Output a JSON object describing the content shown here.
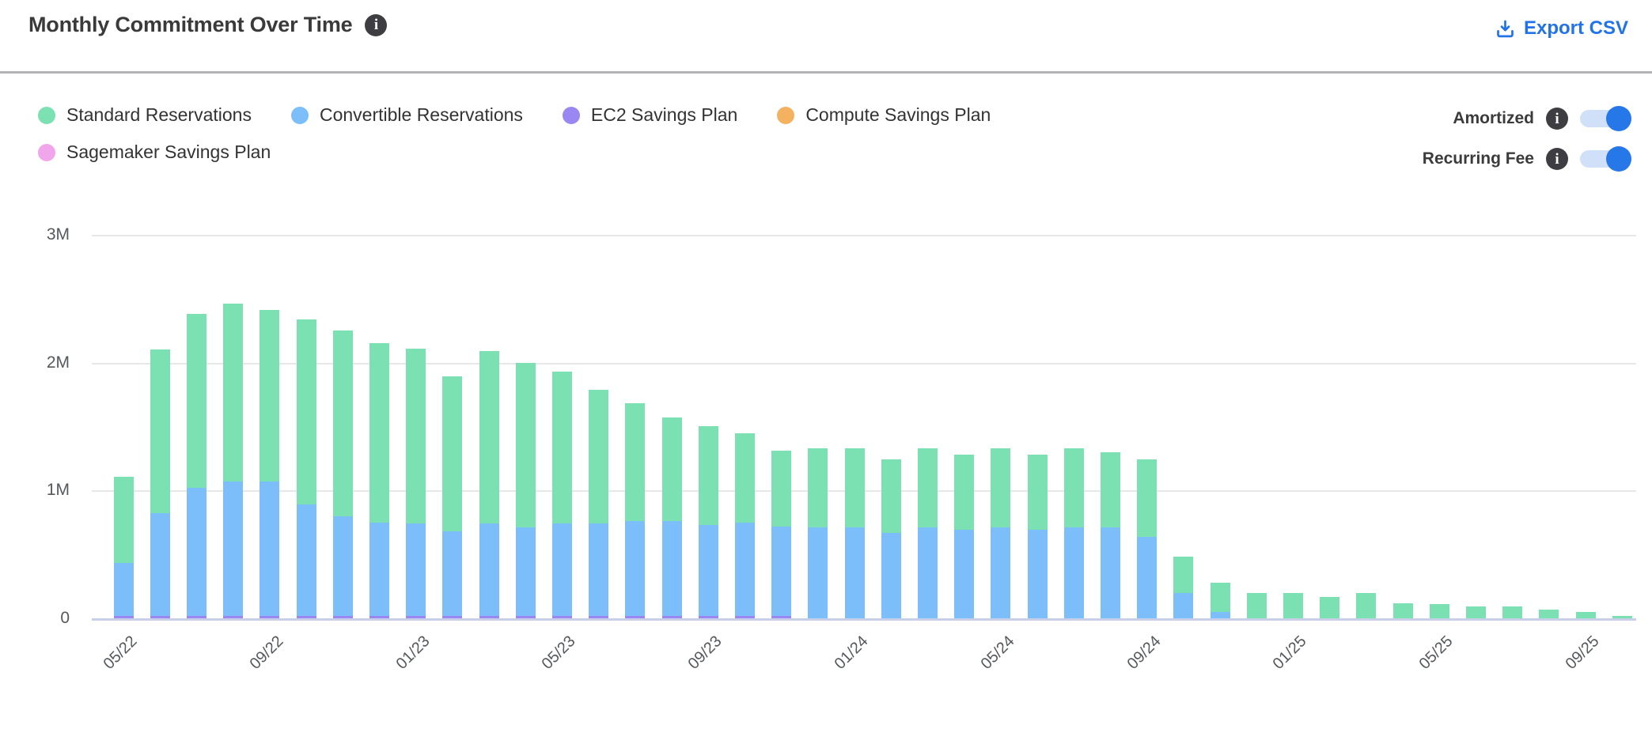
{
  "header": {
    "title": "Monthly Commitment Over Time",
    "export_label": "Export CSV"
  },
  "icons": {
    "info_glyph": "i"
  },
  "toggles": [
    {
      "label": "Amortized",
      "state": "on"
    },
    {
      "label": "Recurring Fee",
      "state": "on"
    }
  ],
  "colors": {
    "accent_blue": "#2272e9",
    "toggle_on": "#2677e8",
    "toggle_track": "#cfe0f8",
    "grid": "#e7e7e8",
    "axis_line": "#c8cfe9",
    "text_dark": "#3a3a3a",
    "text_axis": "#55585d"
  },
  "chart_data": {
    "type": "bar",
    "stacked": true,
    "title": "Monthly Commitment Over Time",
    "unit": "M",
    "grid": "horizontal",
    "legend_position": "top-left",
    "ylim": [
      0,
      3
    ],
    "yticks": [
      "0",
      "1M",
      "2M",
      "3M"
    ],
    "x_tick_every": 4,
    "x": [
      "05/22",
      "06/22",
      "07/22",
      "08/22",
      "09/22",
      "10/22",
      "11/22",
      "12/22",
      "01/23",
      "02/23",
      "03/23",
      "04/23",
      "05/23",
      "06/23",
      "07/23",
      "08/23",
      "09/23",
      "10/23",
      "11/23",
      "12/23",
      "01/24",
      "02/24",
      "03/24",
      "04/24",
      "05/24",
      "06/24",
      "07/24",
      "08/24",
      "09/24",
      "10/24",
      "11/24",
      "12/24",
      "01/25",
      "02/25",
      "03/25",
      "04/25",
      "05/25",
      "06/25",
      "07/25",
      "08/25",
      "09/25",
      "10/25"
    ],
    "x_tick_labels": [
      "05/22",
      "09/22",
      "01/23",
      "05/23",
      "09/23",
      "01/24",
      "05/24",
      "09/24",
      "01/25",
      "05/25",
      "09/25"
    ],
    "series": [
      {
        "name": "Standard Reservations",
        "color": "#7be0b2",
        "values": [
          0.68,
          1.28,
          1.36,
          1.39,
          1.34,
          1.45,
          1.45,
          1.4,
          1.37,
          1.21,
          1.35,
          1.29,
          1.19,
          1.05,
          0.92,
          0.81,
          0.77,
          0.7,
          0.59,
          0.62,
          0.62,
          0.57,
          0.62,
          0.59,
          0.62,
          0.59,
          0.62,
          0.59,
          0.6,
          0.28,
          0.23,
          0.2,
          0.2,
          0.17,
          0.2,
          0.12,
          0.11,
          0.09,
          0.09,
          0.07,
          0.05,
          0.02
        ]
      },
      {
        "name": "Convertible Reservations",
        "color": "#7cbefa",
        "values": [
          0.41,
          0.8,
          1.0,
          1.05,
          1.05,
          0.87,
          0.78,
          0.73,
          0.72,
          0.66,
          0.72,
          0.69,
          0.72,
          0.72,
          0.74,
          0.74,
          0.71,
          0.73,
          0.7,
          0.71,
          0.71,
          0.67,
          0.71,
          0.69,
          0.71,
          0.69,
          0.71,
          0.71,
          0.64,
          0.2,
          0.05,
          0,
          0,
          0,
          0,
          0,
          0,
          0,
          0,
          0,
          0,
          0
        ]
      },
      {
        "name": "EC2 Savings Plan",
        "color": "#9a87f1",
        "values": [
          0.02,
          0.02,
          0.02,
          0.02,
          0.02,
          0.02,
          0.02,
          0.02,
          0.02,
          0.02,
          0.02,
          0.02,
          0.02,
          0.02,
          0.02,
          0.02,
          0.02,
          0.02,
          0.02,
          0,
          0,
          0,
          0,
          0,
          0,
          0,
          0,
          0,
          0,
          0,
          0,
          0,
          0,
          0,
          0,
          0,
          0,
          0,
          0,
          0,
          0,
          0
        ]
      },
      {
        "name": "Compute Savings Plan",
        "color": "#f4b160",
        "values": [
          0,
          0,
          0,
          0,
          0,
          0,
          0,
          0,
          0,
          0,
          0,
          0,
          0,
          0,
          0,
          0,
          0,
          0,
          0,
          0,
          0,
          0,
          0,
          0,
          0,
          0,
          0,
          0,
          0,
          0,
          0,
          0,
          0,
          0,
          0,
          0,
          0,
          0,
          0,
          0,
          0,
          0
        ]
      },
      {
        "name": "Sagemaker Savings Plan",
        "color": "#f1a5ea",
        "values": [
          0,
          0,
          0,
          0,
          0,
          0,
          0,
          0,
          0,
          0,
          0,
          0,
          0,
          0,
          0,
          0,
          0,
          0,
          0,
          0,
          0,
          0,
          0,
          0,
          0,
          0,
          0,
          0,
          0,
          0,
          0,
          0,
          0,
          0,
          0,
          0,
          0,
          0,
          0,
          0,
          0,
          0
        ]
      }
    ]
  }
}
